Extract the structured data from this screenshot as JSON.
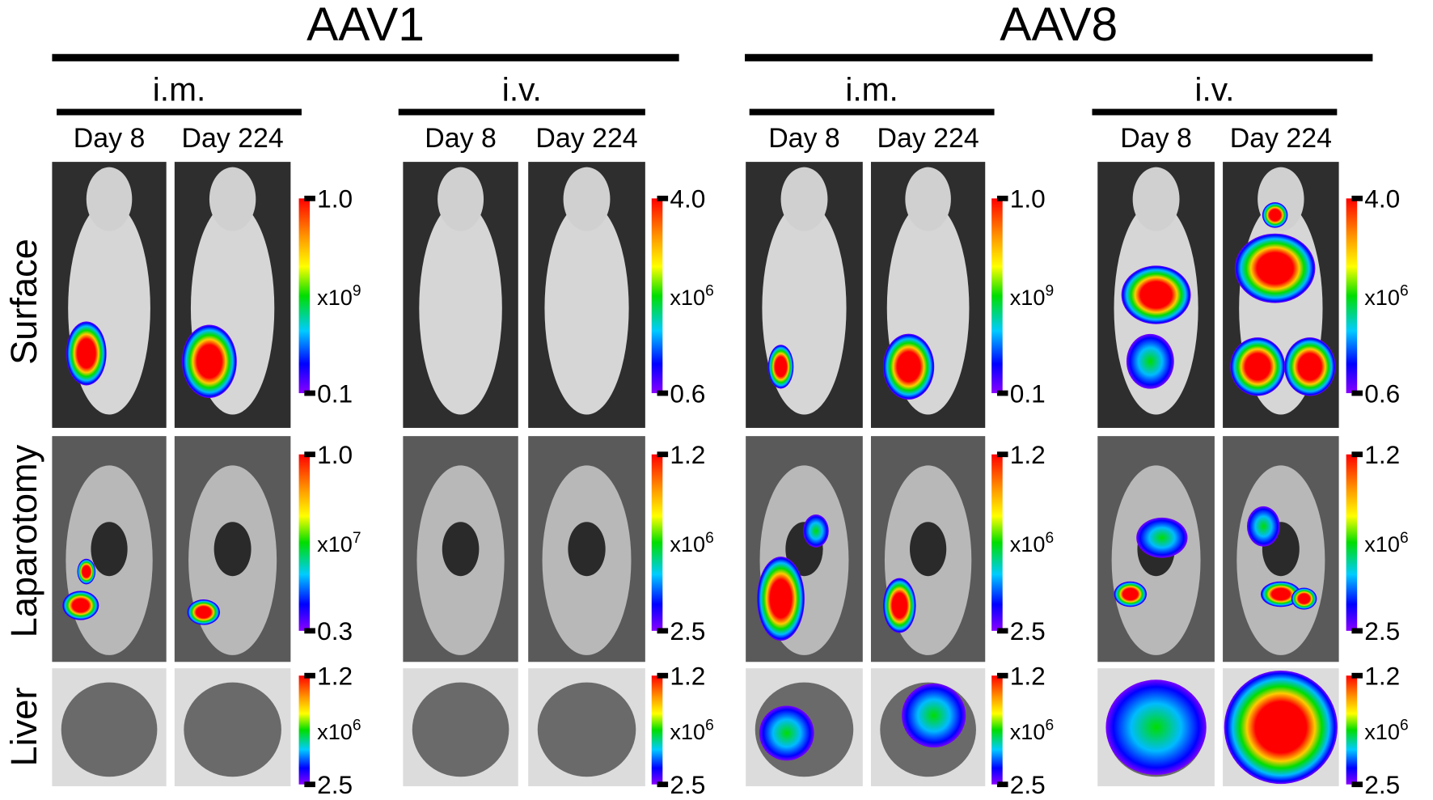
{
  "groups": [
    {
      "title": "AAV1",
      "routes": [
        {
          "label": "i.m.",
          "days": [
            "Day 8",
            "Day 224"
          ]
        },
        {
          "label": "i.v.",
          "days": [
            "Day 8",
            "Day 224"
          ]
        }
      ]
    },
    {
      "title": "AAV8",
      "routes": [
        {
          "label": "i.m.",
          "days": [
            "Day 8",
            "Day 224"
          ]
        },
        {
          "label": "i.v.",
          "days": [
            "Day 8",
            "Day 224"
          ]
        }
      ]
    }
  ],
  "rows": [
    {
      "label": "Surface",
      "scales": [
        {
          "max": "1.0",
          "base": "x10",
          "exp": "9",
          "min": "0.1"
        },
        {
          "max": "4.0",
          "base": "x10",
          "exp": "6",
          "min": "0.6"
        },
        {
          "max": "1.0",
          "base": "x10",
          "exp": "9",
          "min": "0.1"
        },
        {
          "max": "4.0",
          "base": "x10",
          "exp": "6",
          "min": "0.6"
        }
      ]
    },
    {
      "label": "Laparotomy",
      "scales": [
        {
          "max": "1.0",
          "base": "x10",
          "exp": "7",
          "min": "0.3"
        },
        {
          "max": "1.2",
          "base": "x10",
          "exp": "6",
          "min": "2.5"
        },
        {
          "max": "1.2",
          "base": "x10",
          "exp": "6",
          "min": "2.5"
        },
        {
          "max": "1.2",
          "base": "x10",
          "exp": "6",
          "min": "2.5"
        }
      ]
    },
    {
      "label": "Liver",
      "scales": [
        {
          "max": "1.2",
          "base": "x10",
          "exp": "6",
          "min": "2.5"
        },
        {
          "max": "1.2",
          "base": "x10",
          "exp": "6",
          "min": "2.5"
        },
        {
          "max": "1.2",
          "base": "x10",
          "exp": "6",
          "min": "2.5"
        },
        {
          "max": "1.2",
          "base": "x10",
          "exp": "6",
          "min": "2.5"
        }
      ]
    }
  ]
}
